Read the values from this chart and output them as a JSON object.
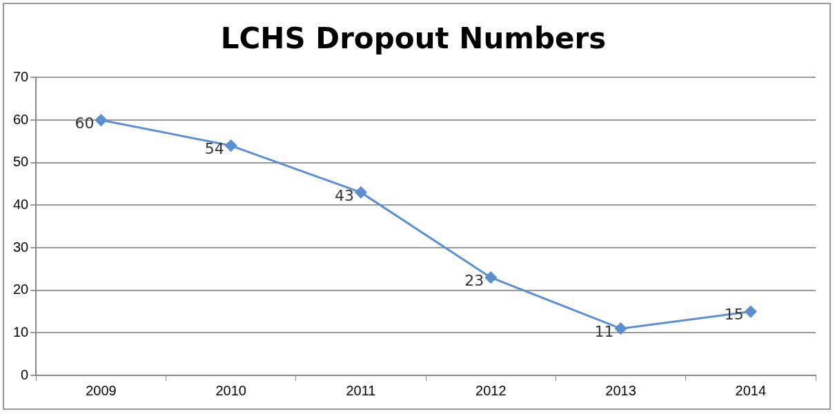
{
  "chart_data": {
    "type": "line",
    "title": "LCHS Dropout Numbers",
    "categories": [
      "2009",
      "2010",
      "2011",
      "2012",
      "2013",
      "2014"
    ],
    "series": [
      {
        "color": "#5b8fcf",
        "values": [
          60,
          54,
          43,
          23,
          11,
          15
        ]
      }
    ],
    "ylim": [
      0,
      70
    ],
    "yticks": [
      0,
      10,
      20,
      30,
      40,
      50,
      60,
      70
    ],
    "grid": "y",
    "legend": false,
    "marker": "diamond",
    "line_style": "solid",
    "data_labels": true
  }
}
